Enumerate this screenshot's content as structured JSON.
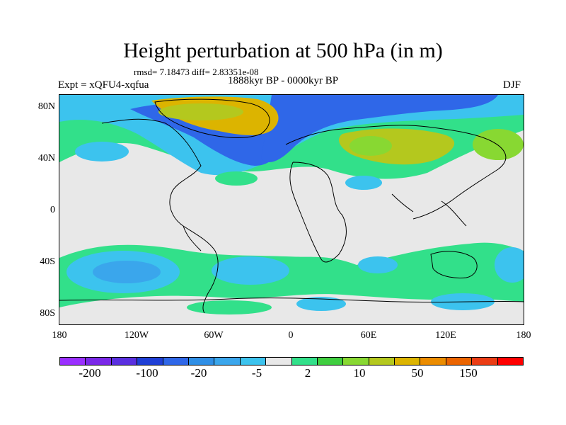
{
  "title": "Height perturbation at 500 hPa (in m)",
  "stats_text": "rmsd= 7.18473 diff= 2.83351e-08",
  "left_label": "Expt = xQFU4-xqfua",
  "center_label": "1888kyr BP - 0000kyr BP",
  "right_label": "DJF",
  "map": {
    "y_ticks": [
      "80N",
      "40N",
      "0",
      "40S",
      "80S"
    ],
    "x_ticks": [
      "180",
      "120W",
      "60W",
      "0",
      "60E",
      "120E",
      "180"
    ],
    "background_color": "#e8e8e8"
  },
  "colorbar": {
    "colors": [
      "#9a2fff",
      "#7a28e8",
      "#5a2fe0",
      "#1f3fd6",
      "#2f67e8",
      "#2f8fe6",
      "#3aa6ec",
      "#3cc3ee",
      "#e8e8e8",
      "#32e08a",
      "#3fce3f",
      "#88d832",
      "#b4c81e",
      "#dcb400",
      "#eb8c00",
      "#eb6400",
      "#eb3c14",
      "#ff0000"
    ],
    "labels": [
      "-200",
      "-100",
      "-20",
      "-5",
      "2",
      "10",
      "50",
      "150"
    ]
  }
}
